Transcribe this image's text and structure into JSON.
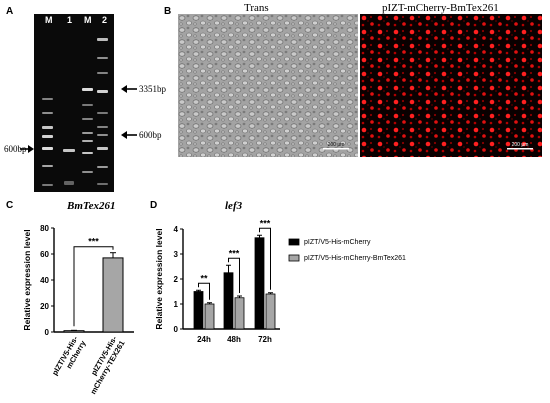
{
  "panels": {
    "a": "A",
    "b": "B",
    "c": "C",
    "d": "D"
  },
  "gel": {
    "lanes": [
      "M",
      "1",
      "M",
      "2"
    ],
    "marker_left": "600bp",
    "marker_right_top": "3351bp",
    "marker_right_mid": "600bp"
  },
  "microscopy": {
    "left_title": "Trans",
    "right_title": "pIZT-mCherry-BmTex261",
    "scale_left": "200 μm",
    "scale_right": "200 μm"
  },
  "chart_data": [
    {
      "type": "bar",
      "title": "BmTex261",
      "ylabel": "Relative expression level",
      "ylim": [
        0,
        80
      ],
      "yticks": [
        "0",
        "20",
        "40",
        "60",
        "80"
      ],
      "categories": [
        "pIZT/V5-His-mCherry",
        "pIZT/V5-His-mCherry-TEX261"
      ],
      "category_lines": [
        [
          "pIZT/V5-His-",
          "mCherry"
        ],
        [
          "pIZT/V5-His-",
          "mCherry-TEX261"
        ]
      ],
      "values": [
        1,
        57
      ],
      "errors": [
        0.3,
        4
      ],
      "colors": [
        "#ffffff",
        "#a6a6a6"
      ],
      "significance": "***"
    },
    {
      "type": "bar",
      "title": "lef3",
      "ylabel": "Relative expression level",
      "ylim": [
        0,
        4
      ],
      "yticks": [
        "0",
        "1",
        "2",
        "3",
        "4"
      ],
      "categories": [
        "24h",
        "48h",
        "72h"
      ],
      "series": [
        {
          "name": "pIZT/V5-His-mCherry",
          "color": "#000000",
          "values": [
            1.5,
            2.25,
            3.65
          ],
          "errors": [
            0.05,
            0.3,
            0.1
          ]
        },
        {
          "name": "pIZT/V5-His-mCherry-BmTex261",
          "color": "#a6a6a6",
          "values": [
            1.0,
            1.25,
            1.4
          ],
          "errors": [
            0.05,
            0.07,
            0.05
          ]
        }
      ],
      "significance": [
        "**",
        "***",
        "***"
      ],
      "legend_position": "right"
    }
  ]
}
